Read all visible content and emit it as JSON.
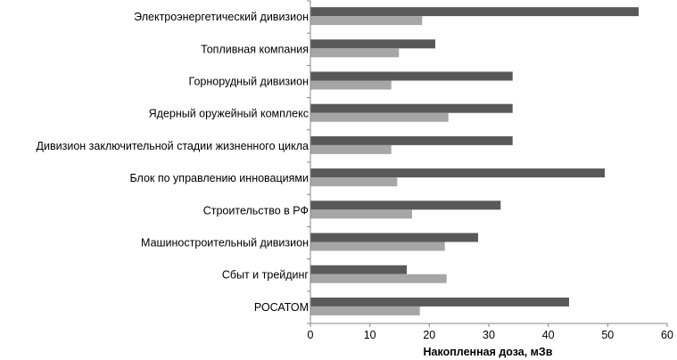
{
  "chart_data": {
    "type": "bar",
    "orientation": "horizontal",
    "title": "",
    "xlabel": "Накопленная доза, мЗв",
    "ylabel": "",
    "xlim": [
      0,
      60
    ],
    "xticks": [
      0,
      10,
      20,
      30,
      40,
      50,
      60
    ],
    "grid": false,
    "legend": "none",
    "categories": [
      "Электроэнергетический дивизион",
      "Топливная компания",
      "Горнорудный дивизион",
      "Ядерный оружейный комплекс",
      "Дивизион заключительной стадии жизненного цикла",
      "Блок по управлению инновациями",
      "Строительство в РФ",
      "Машиностроительный дивизион",
      "Сбыт и трейдинг",
      "РОСАТОМ"
    ],
    "series": [
      {
        "color": "#595959",
        "values": [
          55.2,
          21.0,
          34.0,
          34.0,
          34.0,
          49.5,
          32.0,
          28.2,
          16.2,
          43.5
        ]
      },
      {
        "color": "#a6a6a6",
        "values": [
          18.8,
          14.9,
          13.6,
          23.2,
          13.6,
          14.6,
          17.1,
          22.6,
          22.9,
          18.4
        ]
      }
    ]
  }
}
